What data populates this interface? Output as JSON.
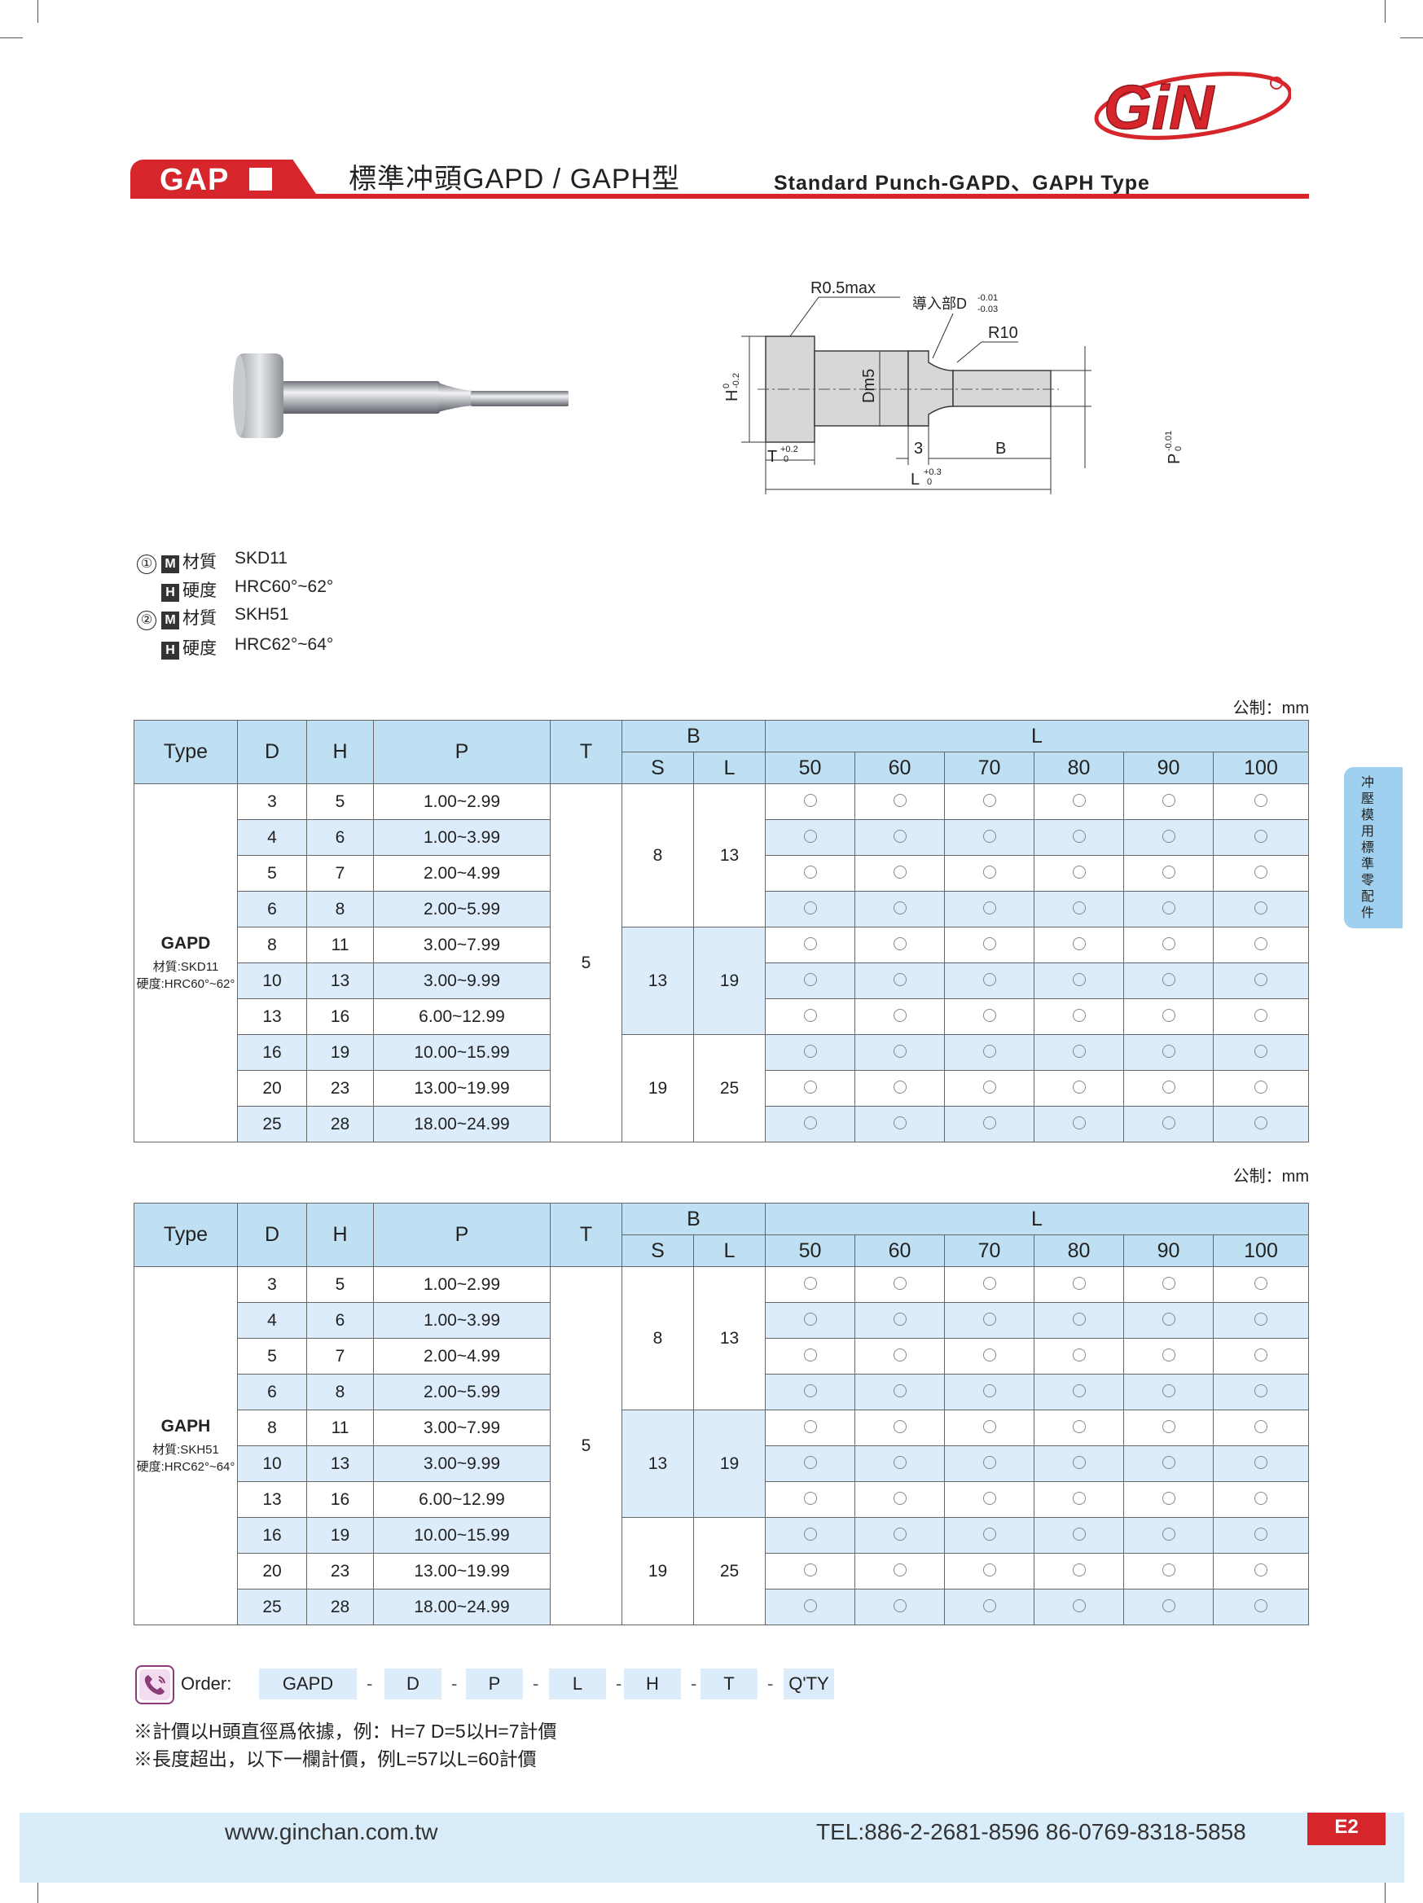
{
  "brand": {
    "logo_text": "GiN"
  },
  "header": {
    "tab": "GAP",
    "title_cn": "標準冲頭GAPD / GAPH型",
    "title_en": "Standard Punch-GAPD、GAPH Type"
  },
  "drawing": {
    "r05": "R0.5max",
    "guide": "導入部D",
    "guide_tol_up": "-0.01",
    "guide_tol_dn": "-0.03",
    "r10": "R10",
    "h": "H",
    "h_tol_up": "0",
    "h_tol_dn": "-0.2",
    "dm5": "Dm5",
    "t": "T",
    "t_tol_up": "+0.2",
    "t_tol_dn": "0",
    "three": "3",
    "b": "B",
    "p": "P",
    "p_tol_up": "-0.01",
    "p_tol_dn": "0",
    "l": "L",
    "l_tol_up": "+0.3",
    "l_tol_dn": "0"
  },
  "materials": [
    {
      "num": "①",
      "m_icon": "M",
      "m_label": "材質",
      "m_value": "SKD11",
      "h_icon": "H",
      "h_label": "硬度",
      "h_value": "HRC60°~62°"
    },
    {
      "num": "②",
      "m_icon": "M",
      "m_label": "材質",
      "m_value": "SKH51",
      "h_icon": "H",
      "h_label": "硬度",
      "h_value": "HRC62°~64°"
    }
  ],
  "unit_label": "公制：mm",
  "columns": {
    "type": "Type",
    "d": "D",
    "h": "H",
    "p": "P",
    "t": "T",
    "b": "B",
    "s": "S",
    "bl": "L",
    "l": "L",
    "lengths": [
      "50",
      "60",
      "70",
      "80",
      "90",
      "100"
    ]
  },
  "rows": [
    {
      "d": "3",
      "h": "5",
      "p": "1.00~2.99"
    },
    {
      "d": "4",
      "h": "6",
      "p": "1.00~3.99"
    },
    {
      "d": "5",
      "h": "7",
      "p": "2.00~4.99"
    },
    {
      "d": "6",
      "h": "8",
      "p": "2.00~5.99"
    },
    {
      "d": "8",
      "h": "11",
      "p": "3.00~7.99"
    },
    {
      "d": "10",
      "h": "13",
      "p": "3.00~9.99"
    },
    {
      "d": "13",
      "h": "16",
      "p": "6.00~12.99"
    },
    {
      "d": "16",
      "h": "19",
      "p": "10.00~15.99"
    },
    {
      "d": "20",
      "h": "23",
      "p": "13.00~19.99"
    },
    {
      "d": "25",
      "h": "28",
      "p": "18.00~24.99"
    }
  ],
  "t_value": "5",
  "b_groups": [
    {
      "s": "8",
      "l": "13"
    },
    {
      "s": "13",
      "l": "19"
    },
    {
      "s": "19",
      "l": "25"
    }
  ],
  "avail_mark": "○",
  "tables": [
    {
      "name": "GAPD",
      "material": "材質:SKD11",
      "hardness": "硬度:HRC60°~62°"
    },
    {
      "name": "GAPH",
      "material": "材質:SKH51",
      "hardness": "硬度:HRC62°~64°"
    }
  ],
  "side_tab": [
    "冲",
    "壓",
    "模",
    "用",
    "標",
    "準",
    "零",
    "配",
    "件"
  ],
  "order": {
    "label": "Order:",
    "fields": [
      "GAPD",
      "D",
      "P",
      "L",
      "H",
      "T",
      "Q'TY"
    ],
    "sep": "-"
  },
  "notes": [
    "※計價以H頭直徑爲依據，例：H=7 D=5以H=7計價",
    "※長度超出，以下一欄計價，例L=57以L=60計價"
  ],
  "footer": {
    "url": "www.ginchan.com.tw",
    "tel": "TEL:886-2-2681-8596    86-0769-8318-5858",
    "page": "E2"
  },
  "colors": {
    "brand_red": "#d6262b",
    "header_blue": "#bfe0f2",
    "row_blue": "#dcecfa"
  }
}
